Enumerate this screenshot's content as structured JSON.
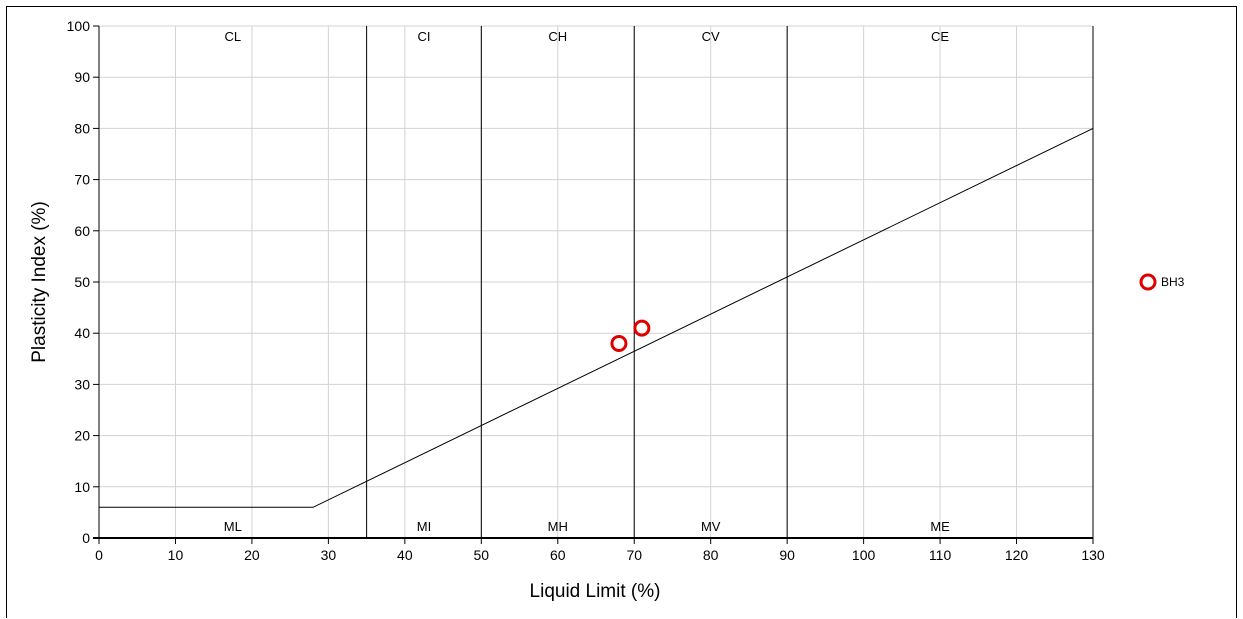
{
  "chart_data": {
    "type": "scatter",
    "title": "",
    "xlabel": "Liquid Limit (%)",
    "ylabel": "Plasticity Index (%)",
    "xlim": [
      0,
      130
    ],
    "ylim": [
      0,
      100
    ],
    "x_ticks": [
      "0",
      "10",
      "20",
      "30",
      "40",
      "50",
      "60",
      "70",
      "80",
      "90",
      "100",
      "110",
      "120",
      "130"
    ],
    "y_ticks": [
      "0",
      "10",
      "20",
      "30",
      "40",
      "50",
      "60",
      "70",
      "80",
      "90",
      "100"
    ],
    "grid": true,
    "legend_position": "right",
    "series": [
      {
        "name": "BH3",
        "color": "#e00000",
        "marker": "open-circle",
        "points": [
          {
            "x": 68,
            "y": 38
          },
          {
            "x": 71,
            "y": 41
          }
        ]
      }
    ],
    "a_line": [
      {
        "x": 0,
        "y": 6
      },
      {
        "x": 28,
        "y": 6
      },
      {
        "x": 130,
        "y": 80
      }
    ],
    "boundaries": [
      35,
      50,
      70,
      90
    ],
    "upper_zone_labels": [
      {
        "label": "CL",
        "x": 17.5
      },
      {
        "label": "CI",
        "x": 42.5
      },
      {
        "label": "CH",
        "x": 60
      },
      {
        "label": "CV",
        "x": 80
      },
      {
        "label": "CE",
        "x": 110
      }
    ],
    "lower_zone_labels": [
      {
        "label": "ML",
        "x": 17.5
      },
      {
        "label": "MI",
        "x": 42.5
      },
      {
        "label": "MH",
        "x": 60
      },
      {
        "label": "MV",
        "x": 80
      },
      {
        "label": "ME",
        "x": 110
      }
    ]
  }
}
